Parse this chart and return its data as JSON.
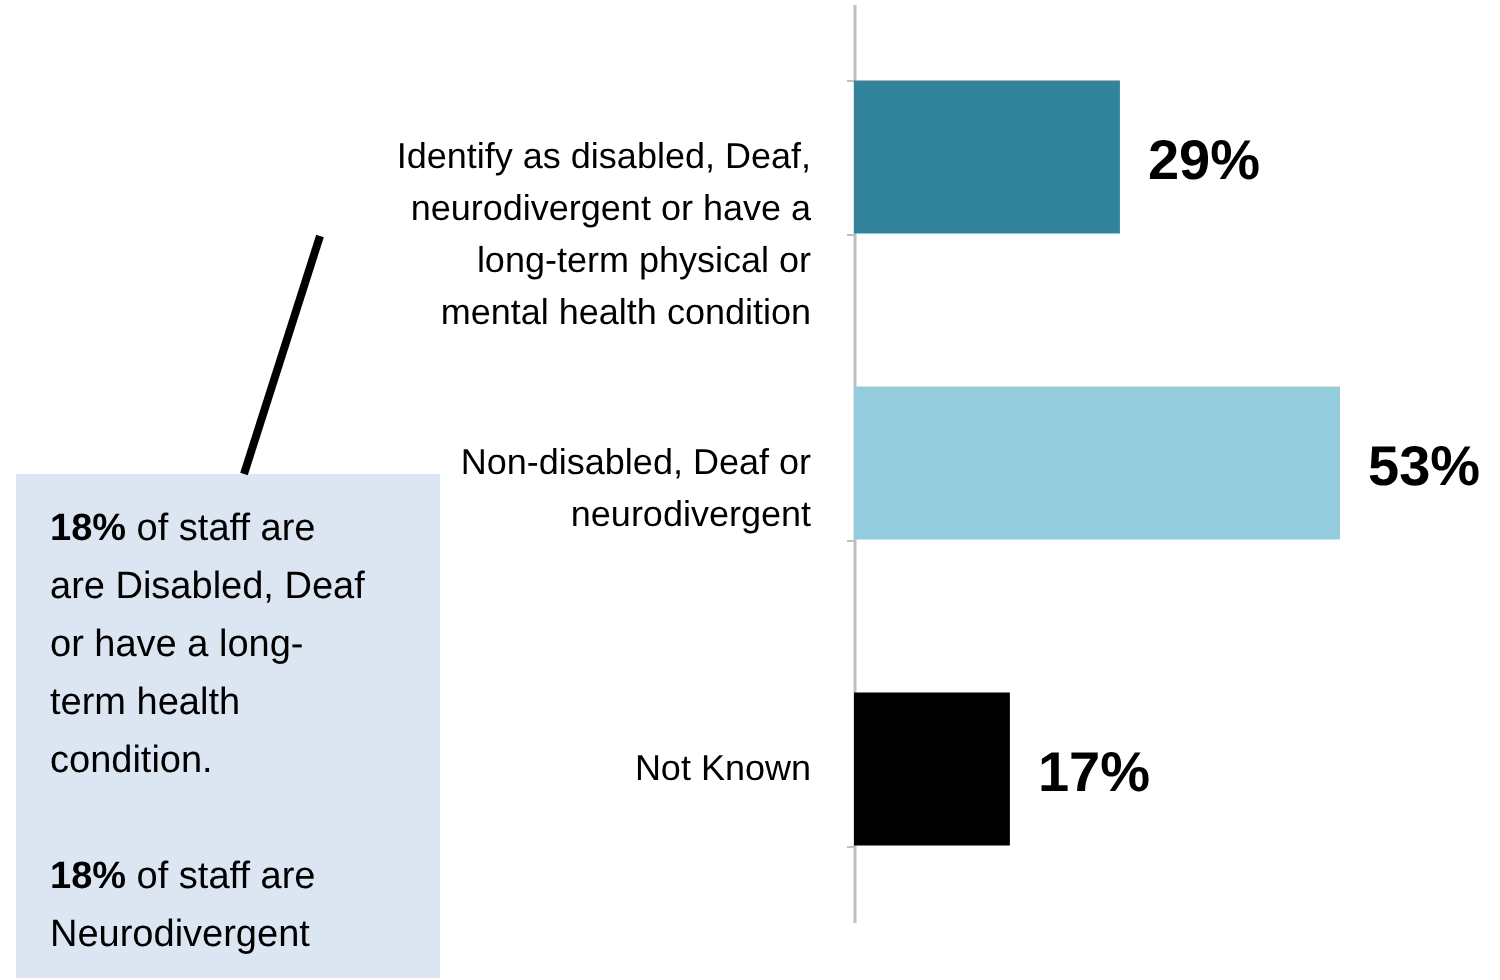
{
  "chart_data": {
    "type": "bar",
    "orientation": "horizontal",
    "categories": [
      "Identify as disabled, Deaf, neurodivergent or have a long-term physical or mental health condition",
      "Non-disabled, Deaf or neurodivergent",
      "Not Known"
    ],
    "values": [
      29,
      53,
      17
    ],
    "colors": [
      "#31849b",
      "#93cddd",
      "#000000"
    ],
    "value_labels": [
      "29%",
      "53%",
      "17%"
    ],
    "tick_labels": "y",
    "annotations": [
      "18% of staff are are Disabled, Deaf or have a long-term health condition.",
      "18% of staff are Neurodivergent"
    ]
  }
}
